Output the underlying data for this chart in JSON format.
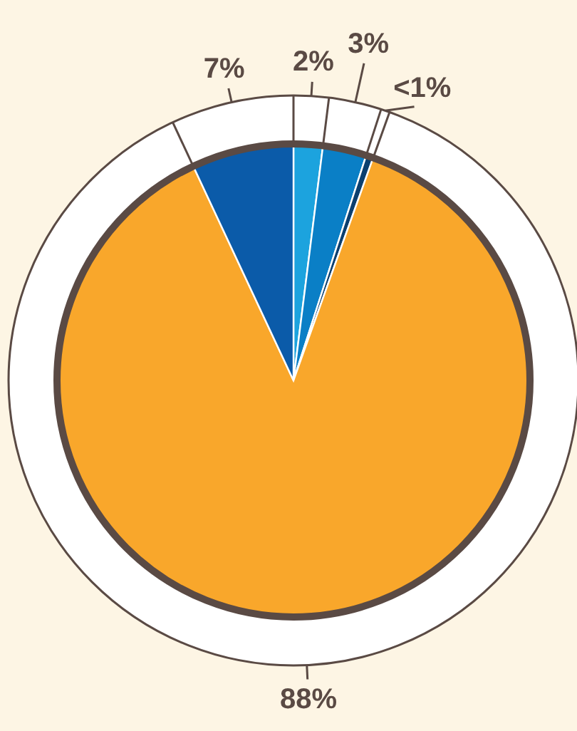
{
  "chart_data": {
    "type": "pie",
    "categories": [
      null,
      null,
      null,
      null,
      null
    ],
    "values": [
      2,
      3,
      0.5,
      88,
      7
    ],
    "colors": [
      "#1ca3de",
      "#0a7fc6",
      "#0b3f6f",
      "#f9a72b",
      "#0b5ba9"
    ],
    "value_labels": [
      "2%",
      "3%",
      "<1%",
      "88%",
      "7%"
    ]
  }
}
